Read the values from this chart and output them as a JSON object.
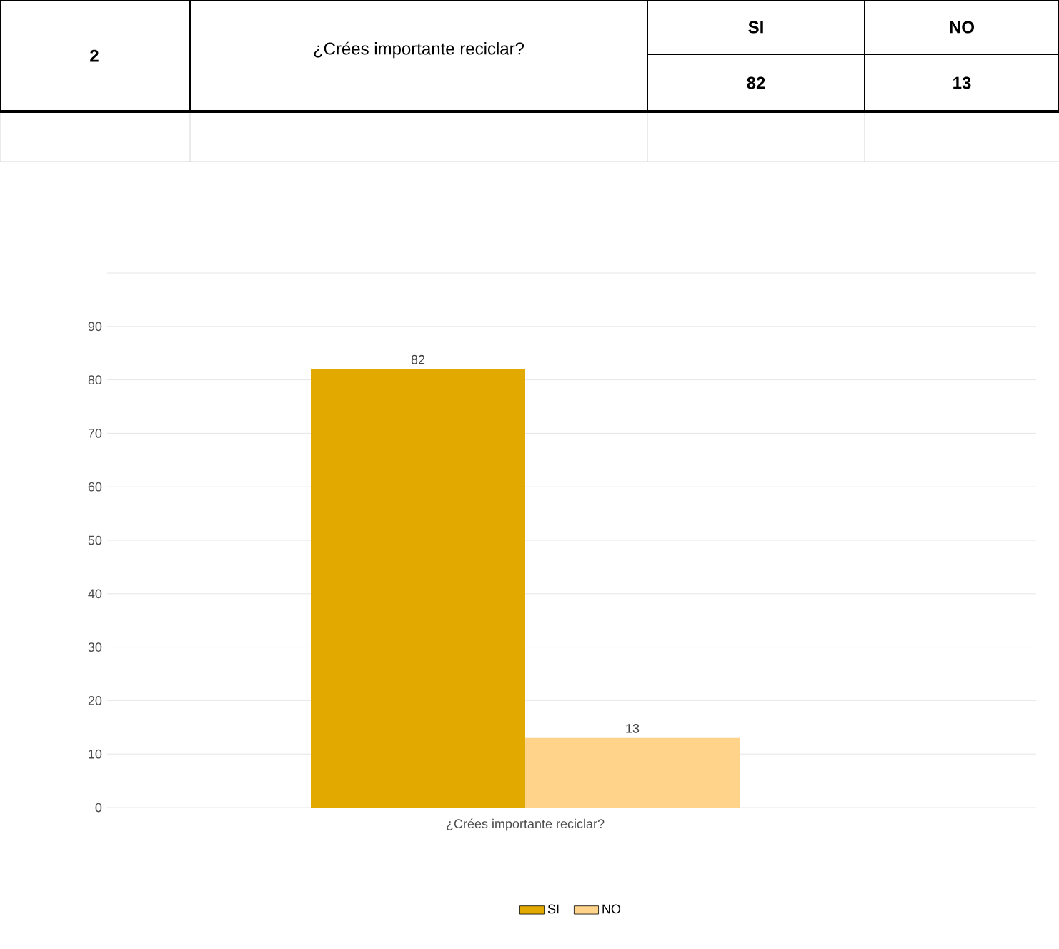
{
  "chart_data": {
    "type": "bar",
    "title": "¿Crées importante reciclar?",
    "annotations": [
      "2"
    ],
    "categories": [
      "¿Crées importante reciclar?"
    ],
    "series": [
      {
        "name": "SI",
        "color": "#e2a900",
        "values": [
          82
        ],
        "value_labels": [
          "82"
        ]
      },
      {
        "name": "NO",
        "color": "#ffd38a",
        "values": [
          13
        ],
        "value_labels": [
          "13"
        ]
      }
    ],
    "ylim": [
      0,
      100
    ],
    "yticks": [
      0,
      10,
      20,
      30,
      40,
      50,
      60,
      70,
      80,
      90,
      {
        "value": 100,
        "label": null
      }
    ],
    "grid": "y",
    "legend": "bottom"
  }
}
